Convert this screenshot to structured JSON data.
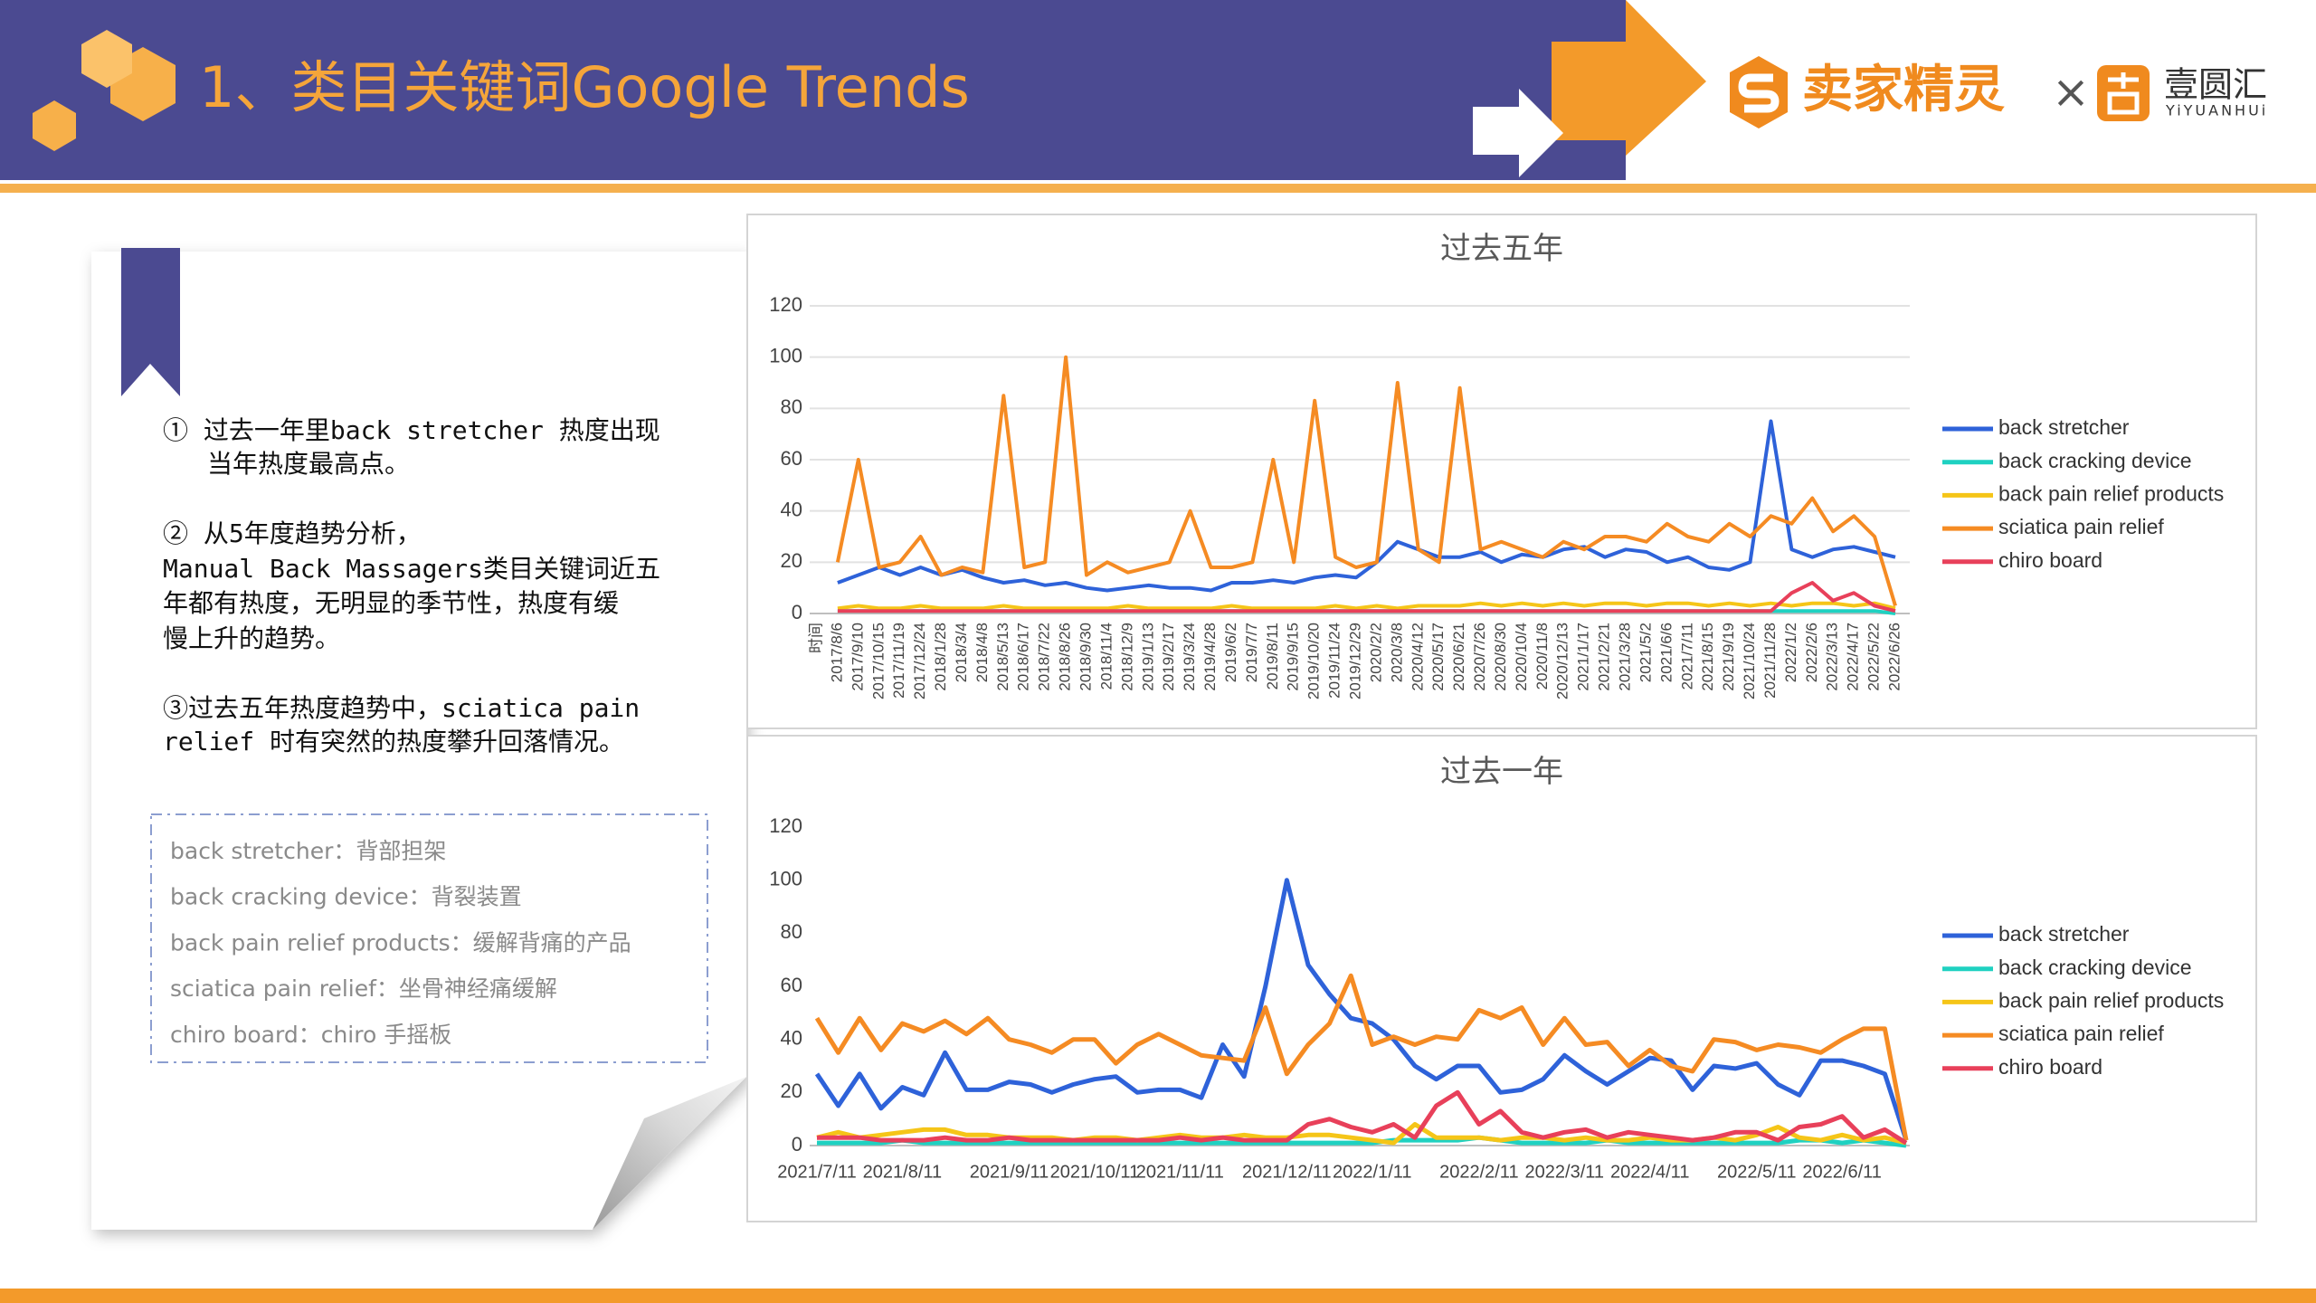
{
  "header": {
    "title": "1、类目关键词Google Trends",
    "brand_1": "卖家精灵",
    "times": "×",
    "brand_2": "壹圆汇",
    "brand_2_sub": "YiYUANHUi"
  },
  "notes": [
    "① 过去一年里back stretcher 热度出现",
    "当年热度最高点。",
    "② 从5年度趋势分析，",
    "Manual Back Massagers类目关键词近五",
    "年都有热度，无明显的季节性，热度有缓",
    "慢上升的趋势。",
    "③过去五年热度趋势中，sciatica pain",
    "relief 时有突然的热度攀升回落情况。"
  ],
  "glossary": [
    "back stretcher：背部担架",
    "back cracking device：背裂装置",
    "back pain relief products：缓解背痛的产品",
    "sciatica pain relief：坐骨神经痛缓解",
    "chiro board：chiro 手摇板"
  ],
  "chart_data": [
    {
      "type": "line",
      "title": "过去五年",
      "grid": true,
      "legend": "right",
      "ylim": [
        0,
        120
      ],
      "yticks": [
        0,
        20,
        40,
        60,
        80,
        100,
        120
      ],
      "categories": [
        "时间",
        "2017/8/6",
        "2017/9/10",
        "2017/10/15",
        "2017/11/19",
        "2017/12/24",
        "2018/1/28",
        "2018/3/4",
        "2018/4/8",
        "2018/5/13",
        "2018/6/17",
        "2018/7/22",
        "2018/8/26",
        "2018/9/30",
        "2018/11/4",
        "2018/12/9",
        "2019/1/13",
        "2019/2/17",
        "2019/3/24",
        "2019/4/28",
        "2019/6/2",
        "2019/7/7",
        "2019/8/11",
        "2019/9/15",
        "2019/10/20",
        "2019/11/24",
        "2019/12/29",
        "2020/2/2",
        "2020/3/8",
        "2020/4/12",
        "2020/5/17",
        "2020/6/21",
        "2020/7/26",
        "2020/8/30",
        "2020/10/4",
        "2020/11/8",
        "2020/12/13",
        "2021/1/17",
        "2021/2/21",
        "2021/3/28",
        "2021/5/2",
        "2021/6/6",
        "2021/7/11",
        "2021/8/15",
        "2021/9/19",
        "2021/10/24",
        "2021/11/28",
        "2022/1/2",
        "2022/2/6",
        "2022/3/13",
        "2022/4/17",
        "2022/5/22",
        "2022/6/26"
      ],
      "series": [
        {
          "name": "back stretcher",
          "color": "#2e62d9",
          "values": [
            null,
            12,
            15,
            18,
            15,
            18,
            15,
            17,
            14,
            12,
            13,
            11,
            12,
            10,
            9,
            10,
            11,
            10,
            10,
            9,
            12,
            12,
            13,
            12,
            14,
            15,
            14,
            20,
            28,
            25,
            22,
            22,
            24,
            20,
            23,
            22,
            25,
            26,
            22,
            25,
            24,
            20,
            22,
            18,
            17,
            20,
            75,
            25,
            22,
            25,
            26,
            24,
            22
          ]
        },
        {
          "name": "back cracking device",
          "color": "#1fd1c1",
          "values": [
            null,
            1,
            1,
            1,
            1,
            1,
            1,
            1,
            1,
            1,
            1,
            1,
            1,
            1,
            1,
            1,
            1,
            1,
            1,
            1,
            1,
            1,
            1,
            1,
            1,
            1,
            1,
            1,
            1,
            1,
            1,
            1,
            1,
            1,
            1,
            1,
            1,
            1,
            1,
            1,
            1,
            1,
            1,
            1,
            1,
            1,
            1,
            1,
            1,
            1,
            1,
            1,
            0
          ]
        },
        {
          "name": "back pain relief products",
          "color": "#f5c518",
          "values": [
            null,
            2,
            3,
            2,
            2,
            3,
            2,
            2,
            2,
            3,
            2,
            2,
            2,
            2,
            2,
            3,
            2,
            2,
            2,
            2,
            3,
            2,
            2,
            2,
            2,
            3,
            2,
            3,
            2,
            3,
            3,
            3,
            4,
            3,
            4,
            3,
            4,
            3,
            4,
            4,
            3,
            4,
            4,
            3,
            4,
            3,
            4,
            3,
            4,
            4,
            3,
            4,
            2
          ]
        },
        {
          "name": "sciatica pain relief",
          "color": "#f58b23",
          "values": [
            null,
            20,
            60,
            18,
            20,
            30,
            15,
            18,
            16,
            85,
            18,
            20,
            100,
            15,
            20,
            16,
            18,
            20,
            40,
            18,
            18,
            20,
            60,
            20,
            83,
            22,
            18,
            20,
            90,
            25,
            20,
            88,
            25,
            28,
            25,
            22,
            28,
            25,
            30,
            30,
            28,
            35,
            30,
            28,
            35,
            30,
            38,
            35,
            45,
            32,
            38,
            30,
            3
          ]
        },
        {
          "name": "chiro board",
          "color": "#e8405a",
          "values": [
            null,
            1,
            1,
            1,
            1,
            1,
            1,
            1,
            1,
            1,
            1,
            1,
            1,
            1,
            1,
            1,
            1,
            1,
            1,
            1,
            1,
            1,
            1,
            1,
            1,
            1,
            1,
            1,
            1,
            1,
            1,
            1,
            1,
            1,
            1,
            1,
            1,
            1,
            1,
            1,
            1,
            1,
            1,
            1,
            1,
            1,
            1,
            8,
            12,
            5,
            8,
            3,
            1
          ]
        }
      ]
    },
    {
      "type": "line",
      "title": "过去一年",
      "grid": false,
      "legend": "right",
      "ylim": [
        0,
        120
      ],
      "yticks": [
        0,
        20,
        40,
        60,
        80,
        100,
        120
      ],
      "categories": [
        "2021/7/11",
        null,
        null,
        null,
        "2021/8/11",
        null,
        null,
        null,
        null,
        "2021/9/11",
        null,
        null,
        null,
        "2021/10/11",
        null,
        null,
        null,
        "2021/11/11",
        null,
        null,
        null,
        null,
        "2021/12/11",
        null,
        null,
        null,
        "2022/1/11",
        null,
        null,
        null,
        null,
        "2022/2/11",
        null,
        null,
        null,
        "2022/3/11",
        null,
        null,
        null,
        "2022/4/11",
        null,
        null,
        null,
        null,
        "2022/5/11",
        null,
        null,
        null,
        "2022/6/11",
        null,
        null,
        null
      ],
      "series": [
        {
          "name": "back stretcher",
          "color": "#2e62d9",
          "values": [
            27,
            15,
            27,
            14,
            22,
            19,
            35,
            21,
            21,
            24,
            23,
            20,
            23,
            25,
            26,
            20,
            21,
            21,
            18,
            38,
            26,
            60,
            100,
            68,
            57,
            48,
            46,
            40,
            30,
            25,
            30,
            30,
            20,
            21,
            25,
            34,
            28,
            23,
            28,
            33,
            32,
            21,
            30,
            29,
            31,
            23,
            19,
            32,
            32,
            30,
            27,
            2
          ]
        },
        {
          "name": "back cracking device",
          "color": "#1fd1c1",
          "values": [
            1,
            1,
            1,
            1,
            2,
            1,
            1,
            1,
            1,
            1,
            1,
            1,
            1,
            1,
            1,
            1,
            1,
            1,
            1,
            1,
            1,
            1,
            1,
            1,
            1,
            1,
            1,
            2,
            2,
            2,
            2,
            3,
            2,
            1,
            1,
            1,
            1,
            2,
            1,
            1,
            1,
            1,
            1,
            1,
            1,
            1,
            2,
            2,
            1,
            2,
            1,
            0
          ]
        },
        {
          "name": "back pain relief products",
          "color": "#f5c518",
          "values": [
            3,
            5,
            3,
            4,
            5,
            6,
            6,
            4,
            4,
            3,
            3,
            3,
            2,
            3,
            3,
            2,
            3,
            4,
            3,
            3,
            4,
            3,
            3,
            4,
            4,
            3,
            2,
            1,
            8,
            3,
            3,
            3,
            2,
            3,
            3,
            2,
            3,
            2,
            2,
            3,
            2,
            2,
            3,
            2,
            4,
            7,
            3,
            2,
            4,
            2,
            3,
            1
          ]
        },
        {
          "name": "sciatica pain relief",
          "color": "#f58b23",
          "values": [
            48,
            35,
            48,
            36,
            46,
            43,
            47,
            42,
            48,
            40,
            38,
            35,
            40,
            40,
            31,
            38,
            42,
            38,
            34,
            33,
            32,
            52,
            27,
            38,
            46,
            64,
            38,
            41,
            38,
            41,
            40,
            51,
            48,
            52,
            38,
            48,
            38,
            39,
            30,
            36,
            30,
            28,
            40,
            39,
            36,
            38,
            37,
            35,
            40,
            44,
            44,
            2
          ]
        },
        {
          "name": "chiro board",
          "color": "#e8405a",
          "values": [
            3,
            3,
            3,
            2,
            2,
            2,
            3,
            2,
            2,
            3,
            2,
            2,
            2,
            2,
            2,
            2,
            2,
            3,
            2,
            3,
            2,
            2,
            2,
            8,
            10,
            7,
            5,
            8,
            3,
            15,
            20,
            8,
            13,
            5,
            3,
            5,
            6,
            3,
            5,
            4,
            3,
            2,
            3,
            5,
            5,
            2,
            7,
            8,
            11,
            3,
            6,
            1
          ]
        }
      ]
    }
  ]
}
